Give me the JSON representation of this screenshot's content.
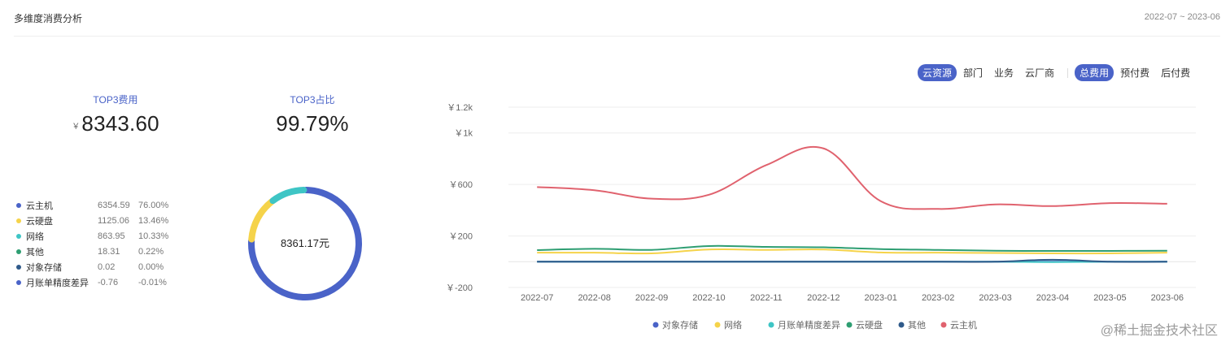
{
  "header": {
    "title": "多维度消费分析",
    "date_range": "2022-07 ~ 2023-06"
  },
  "stats": {
    "top3_cost_label": "TOP3费用",
    "top3_cost_currency": "￥",
    "top3_cost_value": "8343.60",
    "top3_ratio_label": "TOP3占比",
    "top3_ratio_value": "99.79%"
  },
  "breakdown": [
    {
      "name": "云主机",
      "amount": "6354.59",
      "percent": "76.00%",
      "color": "#4a63c8"
    },
    {
      "name": "云硬盘",
      "amount": "1125.06",
      "percent": "13.46%",
      "color": "#f5d34a"
    },
    {
      "name": "网络",
      "amount": "863.95",
      "percent": "10.33%",
      "color": "#3ec5c5"
    },
    {
      "name": "其他",
      "amount": "18.31",
      "percent": "0.22%",
      "color": "#2e9e72"
    },
    {
      "name": "对象存储",
      "amount": "0.02",
      "percent": "0.00%",
      "color": "#2f5a8a"
    },
    {
      "name": "月账单精度差异",
      "amount": "-0.76",
      "percent": "-0.01%",
      "color": "#4a63c8"
    }
  ],
  "donut": {
    "total": "8361.17元"
  },
  "controls": {
    "dimension_tabs": [
      "云资源",
      "部门",
      "业务",
      "云厂商"
    ],
    "dimension_active": 0,
    "cost_tabs": [
      "总费用",
      "预付费",
      "后付费"
    ],
    "cost_active": 0
  },
  "chart_data": {
    "type": "line",
    "x": [
      "2022-07",
      "2022-08",
      "2022-09",
      "2022-10",
      "2022-11",
      "2022-12",
      "2023-01",
      "2023-02",
      "2023-03",
      "2023-04",
      "2023-05",
      "2023-06"
    ],
    "yticks": [
      {
        "value": -200,
        "label": "￥-200"
      },
      {
        "value": 200,
        "label": "￥200"
      },
      {
        "value": 600,
        "label": "￥600"
      },
      {
        "value": 1000,
        "label": "￥1k"
      },
      {
        "value": 1200,
        "label": "￥1.2k"
      }
    ],
    "ylim": [
      -200,
      1200
    ],
    "series": [
      {
        "name": "对象存储",
        "color": "#4a63c8",
        "values": [
          0,
          0,
          0,
          0,
          0,
          0,
          0,
          0,
          0,
          0,
          0,
          0
        ]
      },
      {
        "name": "网络",
        "color": "#f5d34a",
        "values": [
          70,
          70,
          65,
          95,
          92,
          95,
          72,
          70,
          68,
          65,
          65,
          70
        ]
      },
      {
        "name": "月账单精度差异",
        "color": "#3ec5c5",
        "values": [
          0,
          0,
          0,
          0,
          0,
          0,
          0,
          0,
          0,
          -3,
          0,
          0
        ]
      },
      {
        "name": "云硬盘",
        "color": "#2e9e72",
        "values": [
          90,
          100,
          92,
          122,
          115,
          112,
          98,
          92,
          85,
          84,
          84,
          85
        ]
      },
      {
        "name": "其他",
        "color": "#2f5a8a",
        "values": [
          0,
          0,
          0,
          0,
          0,
          0,
          0,
          0,
          0,
          15,
          0,
          0
        ]
      },
      {
        "name": "云主机",
        "color": "#e0626e",
        "values": [
          580,
          555,
          490,
          520,
          750,
          880,
          470,
          410,
          445,
          432,
          455,
          450
        ]
      }
    ]
  },
  "watermark": "@稀土掘金技术社区"
}
